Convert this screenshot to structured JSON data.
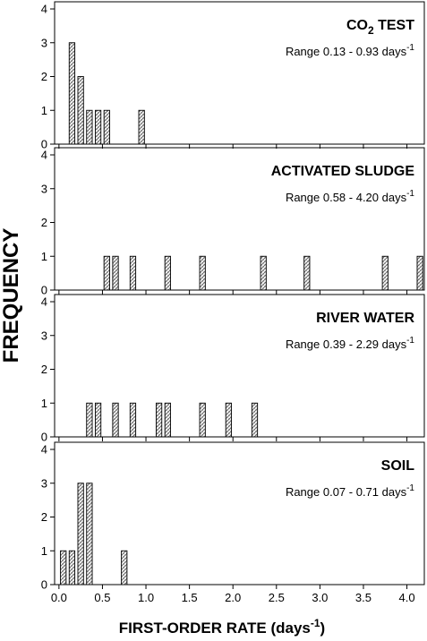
{
  "figure": {
    "ylabel": "FREQUENCY",
    "xlabel_main": "FIRST-ORDER RATE (days",
    "xlabel_sup": "-1",
    "xlabel_close": ")",
    "range_prefix": "Range ",
    "range_unit": " days",
    "range_sup": "-1"
  },
  "chart_data": [
    {
      "type": "bar",
      "title": "CO",
      "title_sub": "2",
      "title_rest": " TEST",
      "range_text": "0.13 - 0.93",
      "bin_width": 0.1,
      "bins": [
        {
          "x": 0.15,
          "count": 3
        },
        {
          "x": 0.25,
          "count": 2
        },
        {
          "x": 0.35,
          "count": 1
        },
        {
          "x": 0.45,
          "count": 1
        },
        {
          "x": 0.55,
          "count": 1
        },
        {
          "x": 0.95,
          "count": 1
        }
      ],
      "xlim": [
        -0.05,
        4.2
      ],
      "ylim": [
        0,
        4
      ],
      "yticks": [
        "0",
        "1",
        "2",
        "3",
        "4"
      ]
    },
    {
      "type": "bar",
      "title": "ACTIVATED SLUDGE",
      "range_text": "0.58 - 4.20",
      "bin_width": 0.1,
      "bins": [
        {
          "x": 0.55,
          "count": 1
        },
        {
          "x": 0.65,
          "count": 1
        },
        {
          "x": 0.85,
          "count": 1
        },
        {
          "x": 1.25,
          "count": 1
        },
        {
          "x": 1.65,
          "count": 1
        },
        {
          "x": 2.35,
          "count": 1
        },
        {
          "x": 2.85,
          "count": 1
        },
        {
          "x": 3.75,
          "count": 1
        },
        {
          "x": 4.15,
          "count": 1
        }
      ],
      "xlim": [
        -0.05,
        4.2
      ],
      "ylim": [
        0,
        4
      ],
      "yticks": [
        "0",
        "1",
        "2",
        "3",
        "4"
      ]
    },
    {
      "type": "bar",
      "title": "RIVER WATER",
      "range_text": "0.39 - 2.29",
      "bin_width": 0.1,
      "bins": [
        {
          "x": 0.35,
          "count": 1
        },
        {
          "x": 0.45,
          "count": 1
        },
        {
          "x": 0.65,
          "count": 1
        },
        {
          "x": 0.85,
          "count": 1
        },
        {
          "x": 1.15,
          "count": 1
        },
        {
          "x": 1.25,
          "count": 1
        },
        {
          "x": 1.65,
          "count": 1
        },
        {
          "x": 1.95,
          "count": 1
        },
        {
          "x": 2.25,
          "count": 1
        }
      ],
      "xlim": [
        -0.05,
        4.2
      ],
      "ylim": [
        0,
        4
      ],
      "yticks": [
        "0",
        "1",
        "2",
        "3",
        "4"
      ]
    },
    {
      "type": "bar",
      "title": "SOIL",
      "range_text": "0.07 - 0.71",
      "bin_width": 0.1,
      "bins": [
        {
          "x": 0.05,
          "count": 1
        },
        {
          "x": 0.15,
          "count": 1
        },
        {
          "x": 0.25,
          "count": 3
        },
        {
          "x": 0.35,
          "count": 3
        },
        {
          "x": 0.75,
          "count": 1
        }
      ],
      "xlim": [
        -0.05,
        4.2
      ],
      "ylim": [
        0,
        4
      ],
      "yticks": [
        "0",
        "1",
        "2",
        "3",
        "4"
      ],
      "xticks": [
        "0.0",
        "0.5",
        "1.0",
        "1.5",
        "2.0",
        "2.5",
        "3.0",
        "3.5",
        "4.0"
      ]
    }
  ]
}
